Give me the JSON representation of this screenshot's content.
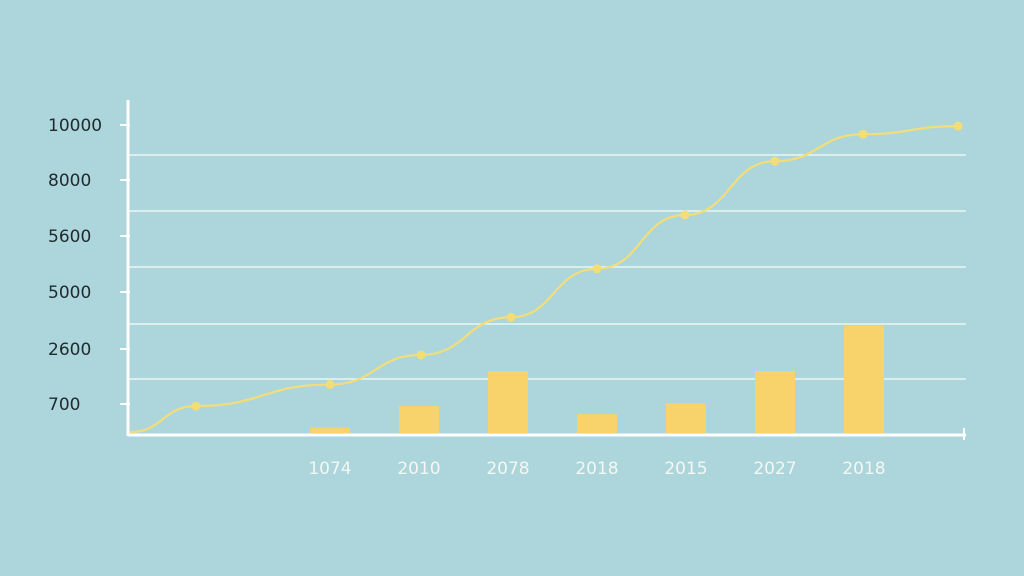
{
  "chart_data": {
    "type": "bar",
    "title": "",
    "xlabel": "",
    "ylabel": "",
    "y_tick_labels": [
      "10000",
      "8000",
      "5600",
      "5000",
      "2600",
      "700"
    ],
    "categories": [
      "1074",
      "2010",
      "2078",
      "2018",
      "2015",
      "2027",
      "2018"
    ],
    "bar_values": [
      200,
      1000,
      2300,
      700,
      1100,
      2300,
      4000
    ],
    "line_values": [
      1000,
      1800,
      2900,
      4300,
      6100,
      8100,
      10100,
      11100,
      11400
    ],
    "grid": "horizontal",
    "legend": "none",
    "colors": {
      "background": "#acd6db",
      "bar": "#f8d36c",
      "line": "#f3dd77",
      "axis": "#ffffff",
      "grid": "#eaf5f5"
    }
  }
}
